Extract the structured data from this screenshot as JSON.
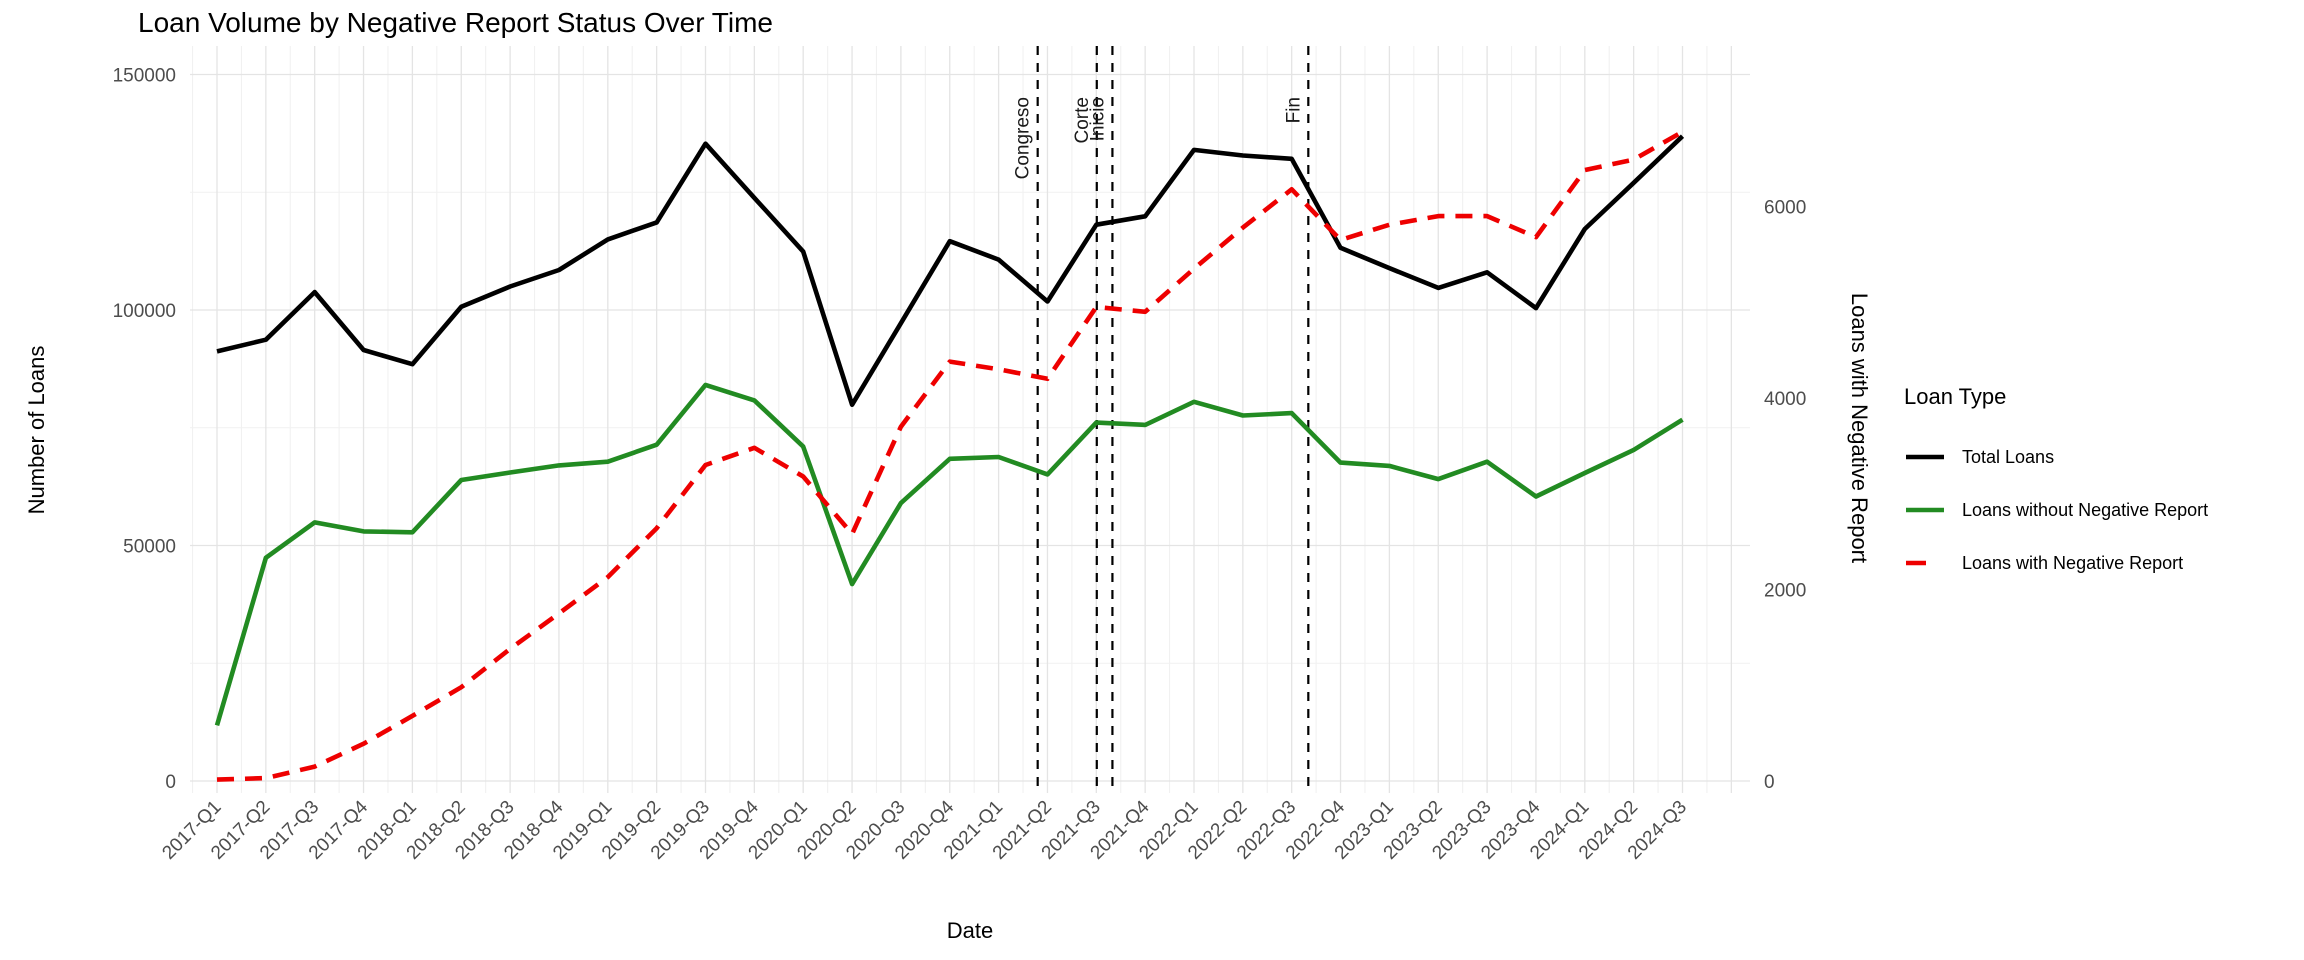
{
  "page": {
    "background": "#ffffff"
  },
  "chart_data": {
    "type": "line",
    "title": "Loan Volume by Negative Report Status Over Time",
    "xlabel": "Date",
    "ylabel_left": "Number of Loans",
    "ylabel_right": "Loans with Negative Report",
    "legend_title": "Loan Type",
    "legend_position": "right",
    "grid": true,
    "background": "#ffffff",
    "grid_major_color": "#e4e4e4",
    "grid_minor_color": "#f1f1f1",
    "tick_label_color": "#4d4d4d",
    "text_color": "#000000",
    "x_categories": [
      "2017-Q1",
      "2017-Q2",
      "2017-Q3",
      "2017-Q4",
      "2018-Q1",
      "2018-Q2",
      "2018-Q3",
      "2018-Q4",
      "2019-Q1",
      "2019-Q2",
      "2019-Q3",
      "2019-Q4",
      "2020-Q1",
      "2020-Q2",
      "2020-Q3",
      "2020-Q4",
      "2021-Q1",
      "2021-Q2",
      "2021-Q3",
      "2021-Q4",
      "2022-Q1",
      "2022-Q2",
      "2022-Q3",
      "2022-Q4",
      "2023-Q1",
      "2023-Q2",
      "2023-Q3",
      "2023-Q4",
      "2024-Q1",
      "2024-Q2",
      "2024-Q3"
    ],
    "ylim_left": [
      0,
      150000
    ],
    "yticks_left": [
      0,
      50000,
      100000,
      150000
    ],
    "ylim_right": [
      0,
      6000
    ],
    "yticks_right": [
      0,
      2000,
      4000,
      6000
    ],
    "series": [
      {
        "name": "Total Loans",
        "color": "#000000",
        "style": "solid",
        "axis": "left",
        "values": [
          91200,
          93700,
          103800,
          91500,
          88500,
          100700,
          105000,
          108500,
          115000,
          118600,
          135300,
          123800,
          112400,
          79900,
          97200,
          114600,
          110700,
          101800,
          118100,
          119900,
          134000,
          132800,
          132100,
          113200,
          108900,
          104700,
          108000,
          100400,
          117200,
          127000,
          136900
        ]
      },
      {
        "name": "Loans without Negative Report",
        "color": "#228B22",
        "style": "solid",
        "axis": "left",
        "values": [
          11800,
          47400,
          54900,
          53000,
          52800,
          63900,
          65500,
          67000,
          67800,
          71400,
          84100,
          80800,
          71000,
          41800,
          59000,
          68400,
          68800,
          65100,
          76100,
          75600,
          80500,
          77600,
          78100,
          67600,
          66900,
          64100,
          67800,
          60400,
          65400,
          70300,
          76700
        ]
      },
      {
        "name": "Loans with Negative Report",
        "color": "#EE0000",
        "style": "dashed",
        "axis": "right",
        "values": [
          15,
          30,
          150,
          390,
          680,
          980,
          1380,
          1750,
          2130,
          2640,
          3300,
          3480,
          3180,
          2580,
          3700,
          4380,
          4300,
          4200,
          4950,
          4900,
          5350,
          5780,
          6180,
          5650,
          5810,
          5900,
          5900,
          5680,
          6380,
          6490,
          6780
        ]
      }
    ],
    "annotations": [
      {
        "label": "Congreso",
        "x_index": 16.8
      },
      {
        "label": "Corte",
        "x_index": 18.01
      },
      {
        "label": "Inicio",
        "x_index": 18.33
      },
      {
        "label": "Fin",
        "x_index": 22.34
      }
    ]
  }
}
